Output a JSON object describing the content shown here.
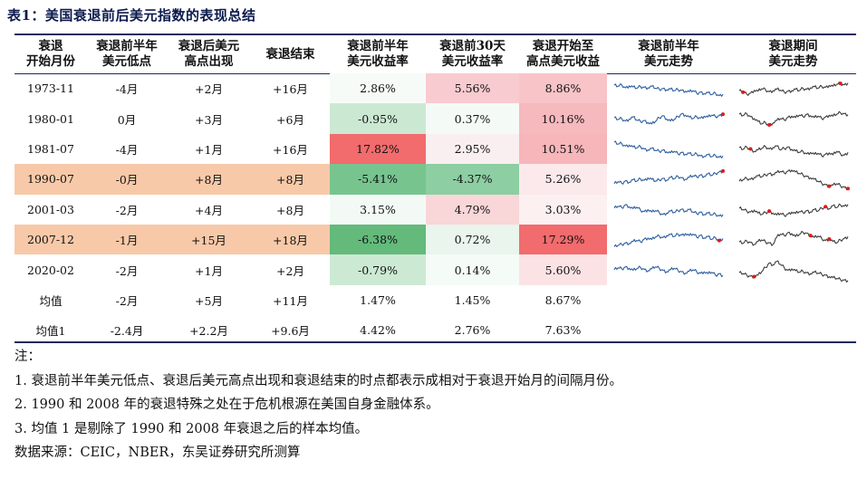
{
  "title": "表1：美国衰退前后美元指数的表现总结",
  "columns": [
    {
      "line1": "衰退",
      "line2": "开始月份"
    },
    {
      "line1": "衰退前半年",
      "line2": "美元低点"
    },
    {
      "line1": "衰退后美元",
      "line2": "高点出现"
    },
    {
      "line1": "衰退结束",
      "line2": ""
    },
    {
      "line1": "衰退前半年",
      "line2": "美元收益率"
    },
    {
      "line1": "衰退前30天",
      "line2": "美元收益率"
    },
    {
      "line1": "衰退开始至",
      "line2": "高点美元收益"
    },
    {
      "line1": "衰退前半年",
      "line2": "美元走势"
    },
    {
      "line1": "衰退期间",
      "line2": "美元走势"
    }
  ],
  "rows": [
    {
      "start": "1973-11",
      "low": "-4月",
      "high": "+2月",
      "end": "+16月",
      "r6m": "2.86%",
      "r30d": "5.56%",
      "rpeak": "8.86%",
      "hl": false,
      "bg": [
        "#f6fbf8",
        "#f8cbd0",
        "#f8c4c8"
      ],
      "pre": [
        0.62,
        0.58,
        0.64,
        0.52,
        0.6,
        0.55,
        0.5,
        0.57,
        0.54,
        0.52,
        0.58,
        0.5,
        0.46,
        0.49,
        0.44,
        0.47,
        0.4,
        0.45,
        0.42,
        0.38,
        0.36,
        0.4,
        0.3,
        0.35,
        0.28,
        0.32,
        0.24,
        0.3,
        0.2,
        0.26
      ],
      "dur": [
        0.4,
        0.34,
        0.26,
        0.3,
        0.42,
        0.38,
        0.48,
        0.44,
        0.36,
        0.4,
        0.46,
        0.42,
        0.34,
        0.38,
        0.4,
        0.46,
        0.4,
        0.5,
        0.46,
        0.52,
        0.56,
        0.5,
        0.58,
        0.54,
        0.62,
        0.58,
        0.66,
        0.7,
        0.64,
        0.72
      ],
      "preDot": null,
      "durDot": [
        1,
        27
      ]
    },
    {
      "start": "1980-01",
      "low": "0月",
      "high": "+3月",
      "end": "+6月",
      "r6m": "-0.95%",
      "r30d": "0.37%",
      "rpeak": "10.16%",
      "hl": false,
      "bg": [
        "#cbe8d3",
        "#f4faf6",
        "#f6b9bd"
      ],
      "pre": [
        0.55,
        0.48,
        0.52,
        0.42,
        0.5,
        0.58,
        0.46,
        0.4,
        0.44,
        0.36,
        0.3,
        0.4,
        0.56,
        0.64,
        0.5,
        0.42,
        0.48,
        0.6,
        0.72,
        0.66,
        0.58,
        0.52,
        0.6,
        0.54,
        0.62,
        0.58,
        0.66,
        0.6,
        0.64,
        0.7
      ],
      "dur": [
        0.7,
        0.64,
        0.72,
        0.6,
        0.52,
        0.4,
        0.3,
        0.36,
        0.26,
        0.34,
        0.44,
        0.52,
        0.46,
        0.58,
        0.62,
        0.56,
        0.66,
        0.6,
        0.7,
        0.64,
        0.56,
        0.62,
        0.52,
        0.58,
        0.66,
        0.62,
        0.7,
        0.76,
        0.72,
        0.68
      ],
      "preDot": [
        29
      ],
      "durDot": [
        8
      ]
    },
    {
      "start": "1981-07",
      "low": "-4月",
      "high": "+1月",
      "end": "+16月",
      "r6m": "17.82%",
      "r30d": "2.95%",
      "rpeak": "10.51%",
      "hl": false,
      "bg": [
        "#f26b6d",
        "#f9eff0",
        "#f6b6ba"
      ],
      "pre": [
        0.78,
        0.7,
        0.72,
        0.62,
        0.66,
        0.58,
        0.54,
        0.6,
        0.5,
        0.46,
        0.52,
        0.44,
        0.4,
        0.46,
        0.38,
        0.34,
        0.4,
        0.3,
        0.36,
        0.28,
        0.32,
        0.24,
        0.3,
        0.22,
        0.2,
        0.26,
        0.18,
        0.24,
        0.16,
        0.22
      ],
      "dur": [
        0.55,
        0.48,
        0.58,
        0.5,
        0.4,
        0.46,
        0.52,
        0.6,
        0.5,
        0.56,
        0.62,
        0.46,
        0.52,
        0.58,
        0.48,
        0.42,
        0.36,
        0.4,
        0.3,
        0.36,
        0.28,
        0.32,
        0.22,
        0.28,
        0.34,
        0.26,
        0.4,
        0.3,
        0.24,
        0.36
      ],
      "preDot": null,
      "durDot": [
        3
      ]
    },
    {
      "start": "1990-07",
      "low": "-0月",
      "high": "+8月",
      "end": "+8月",
      "r6m": "-5.41%",
      "r30d": "-4.37%",
      "rpeak": "5.26%",
      "hl": true,
      "bg": [
        "#77c48f",
        "#8dcea2",
        "#fce9eb"
      ],
      "pre": [
        0.3,
        0.38,
        0.32,
        0.42,
        0.36,
        0.46,
        0.4,
        0.5,
        0.44,
        0.54,
        0.48,
        0.4,
        0.46,
        0.52,
        0.44,
        0.56,
        0.5,
        0.6,
        0.54,
        0.48,
        0.56,
        0.62,
        0.58,
        0.66,
        0.6,
        0.7,
        0.64,
        0.72,
        0.78,
        0.82
      ],
      "dur": [
        0.4,
        0.46,
        0.52,
        0.48,
        0.56,
        0.62,
        0.58,
        0.66,
        0.72,
        0.68,
        0.76,
        0.8,
        0.74,
        0.82,
        0.86,
        0.78,
        0.72,
        0.66,
        0.6,
        0.54,
        0.48,
        0.4,
        0.32,
        0.26,
        0.2,
        0.24,
        0.3,
        0.22,
        0.16,
        0.1
      ],
      "preDot": [
        29
      ],
      "durDot": [
        24,
        29
      ]
    },
    {
      "start": "2001-03",
      "low": "-2月",
      "high": "+4月",
      "end": "+8月",
      "r6m": "3.15%",
      "r30d": "4.79%",
      "rpeak": "3.03%",
      "hl": false,
      "bg": [
        "#f3faf5",
        "#f9d6d8",
        "#fcf0f1"
      ],
      "pre": [
        0.56,
        0.64,
        0.58,
        0.7,
        0.62,
        0.54,
        0.6,
        0.48,
        0.42,
        0.5,
        0.4,
        0.46,
        0.38,
        0.3,
        0.36,
        0.44,
        0.38,
        0.46,
        0.52,
        0.44,
        0.5,
        0.4,
        0.34,
        0.4,
        0.3,
        0.36,
        0.28,
        0.32,
        0.24,
        0.3
      ],
      "dur": [
        0.56,
        0.5,
        0.44,
        0.4,
        0.48,
        0.36,
        0.3,
        0.38,
        0.44,
        0.36,
        0.28,
        0.34,
        0.26,
        0.32,
        0.4,
        0.34,
        0.42,
        0.38,
        0.46,
        0.4,
        0.5,
        0.44,
        0.56,
        0.62,
        0.54,
        0.66,
        0.58,
        0.7,
        0.64,
        0.72
      ],
      "preDot": null,
      "durDot": [
        8,
        23
      ]
    },
    {
      "start": "2007-12",
      "low": "-1月",
      "high": "+15月",
      "end": "+18月",
      "r6m": "-6.38%",
      "r30d": "0.72%",
      "rpeak": "17.29%",
      "hl": true,
      "bg": [
        "#63ba7b",
        "#e9f5ed",
        "#f26b6d"
      ],
      "pre": [
        0.2,
        0.26,
        0.3,
        0.36,
        0.34,
        0.42,
        0.46,
        0.4,
        0.52,
        0.56,
        0.5,
        0.6,
        0.64,
        0.58,
        0.66,
        0.7,
        0.62,
        0.72,
        0.68,
        0.74,
        0.66,
        0.72,
        0.6,
        0.68,
        0.56,
        0.62,
        0.5,
        0.58,
        0.46,
        0.54
      ],
      "dur": [
        0.4,
        0.34,
        0.44,
        0.38,
        0.3,
        0.42,
        0.48,
        0.4,
        0.36,
        0.3,
        0.6,
        0.72,
        0.66,
        0.78,
        0.74,
        0.62,
        0.7,
        0.8,
        0.76,
        0.66,
        0.58,
        0.64,
        0.54,
        0.46,
        0.52,
        0.42,
        0.36,
        0.48,
        0.54,
        0.62
      ],
      "preDot": [
        28
      ],
      "durDot": [
        19,
        24
      ]
    },
    {
      "start": "2020-02",
      "low": "-2月",
      "high": "+1月",
      "end": "+2月",
      "r6m": "-0.79%",
      "r30d": "0.14%",
      "rpeak": "5.60%",
      "hl": false,
      "bg": [
        "#cce9d4",
        "#f5fbf7",
        "#fbe3e5"
      ],
      "pre": [
        0.52,
        0.6,
        0.56,
        0.64,
        0.58,
        0.5,
        0.56,
        0.62,
        0.54,
        0.48,
        0.56,
        0.64,
        0.58,
        0.5,
        0.44,
        0.52,
        0.58,
        0.5,
        0.44,
        0.38,
        0.46,
        0.52,
        0.44,
        0.38,
        0.44,
        0.36,
        0.42,
        0.3,
        0.36,
        0.28
      ],
      "dur": [
        0.4,
        0.36,
        0.3,
        0.26,
        0.24,
        0.3,
        0.44,
        0.62,
        0.8,
        0.72,
        0.86,
        0.74,
        0.6,
        0.5,
        0.56,
        0.48,
        0.42,
        0.46,
        0.4,
        0.36,
        0.42,
        0.38,
        0.34,
        0.3,
        0.24,
        0.2,
        0.16,
        0.12,
        0.1,
        0.08
      ],
      "preDot": null,
      "durDot": [
        4
      ]
    }
  ],
  "summary": [
    {
      "label": "均值",
      "low": "-2月",
      "high": "+5月",
      "end": "+11月",
      "r6m": "1.47%",
      "r30d": "1.45%",
      "rpeak": "8.67%"
    },
    {
      "label": "均值1",
      "low": "-2.4月",
      "high": "+2.2月",
      "end": "+9.6月",
      "r6m": "4.42%",
      "r30d": "2.76%",
      "rpeak": "7.63%"
    }
  ],
  "notes": {
    "head": "注：",
    "n1": "1. 衰退前半年美元低点、衰退后美元高点出现和衰退结束的时点都表示成相对于衰退开始月的间隔月份。",
    "n2": "2. 1990 和 2008 年的衰退特殊之处在于危机根源在美国自身金融体系。",
    "n3": "3. 均值 1 是剔除了 1990 和 2008 年衰退之后的样本均值。",
    "source": "数据来源：CEIC，NBER，东吴证券研究所测算"
  },
  "colors": {
    "pre_line": "#2f5f9e",
    "dur_line": "#3d3d3d",
    "dot": "#e01b1b",
    "highlight": "#f8c9a8"
  }
}
